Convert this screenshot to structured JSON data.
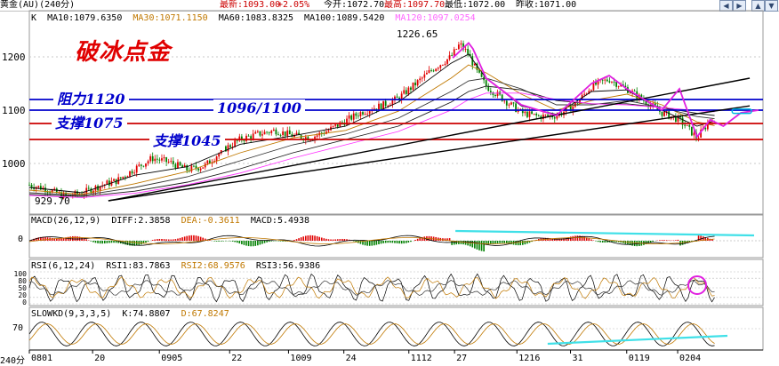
{
  "header": {
    "instrument": "黄金(AU)(240分)",
    "items": [
      "最新:1093.00",
      "+2.05%",
      "今开:1072.70",
      "最高:1097.70",
      "最低:1072.00",
      "昨收:1071.00"
    ]
  },
  "legend": {
    "k_label": "K",
    "ma": [
      {
        "label": "MA10:1079.6350",
        "color": "#000000"
      },
      {
        "label": "MA30:1071.1150",
        "color": "#c07800"
      },
      {
        "label": "MA60:1083.8325",
        "color": "#000000"
      },
      {
        "label": "MA100:1089.5420",
        "color": "#000000"
      },
      {
        "label": "MA120:1097.0254",
        "color": "#ff66ff"
      }
    ]
  },
  "annotations": {
    "title": "破冰点金",
    "resistance": "阻力1120",
    "support1": "支撑1075",
    "range_label": "1096/1100",
    "support2": "支撑1045",
    "high_label": "1226.65",
    "low_label": "929.70"
  },
  "macd_panel": {
    "title": "MACD(26,12,9)",
    "diff": "DIFF:2.3858",
    "dea": "DEA:-0.3611",
    "macd": "MACD:5.4938",
    "zero_label": "0"
  },
  "rsi_panel": {
    "title": "RSI(6,12,24)",
    "rsi1": "RSI1:83.7863",
    "rsi2": "RSI2:68.9576",
    "rsi3": "RSI3:56.9386",
    "ticks": [
      "100",
      "80",
      "50",
      "20",
      "0"
    ]
  },
  "kd_panel": {
    "title": "SLOWKD(9,3,3,5)",
    "k": "K:74.8807",
    "d": "D:67.8247",
    "tick": "70"
  },
  "xaxis": {
    "period_label": "240分",
    "ticks": [
      "0801",
      "20",
      "0905",
      "22",
      "1009",
      "24",
      "1112",
      "27",
      "1216",
      "31",
      "0119",
      "0204"
    ]
  },
  "chart_data": {
    "type": "line",
    "title": "",
    "ylim": [
      910,
      1260
    ],
    "yticks": [
      1000,
      1100,
      1200
    ],
    "xlabel": "",
    "ylabel": "",
    "grid": true,
    "series": [
      {
        "name": "K",
        "x": [
          0,
          20,
          40,
          60,
          80,
          100,
          120,
          140,
          160,
          180,
          200,
          220,
          240,
          260,
          280,
          300,
          320,
          340,
          360,
          380,
          400,
          420,
          440,
          460,
          480,
          490,
          500,
          510,
          520,
          540,
          560,
          580,
          600,
          620,
          640,
          660,
          680,
          700,
          720,
          740,
          760,
          780
        ],
        "values": [
          960,
          952,
          938,
          944,
          958,
          968,
          990,
          1010,
          1002,
          988,
          996,
          1025,
          1045,
          1055,
          1062,
          1052,
          1048,
          1062,
          1080,
          1098,
          1108,
          1122,
          1150,
          1178,
          1200,
          1224,
          1205,
          1170,
          1145,
          1120,
          1095,
          1088,
          1090,
          1108,
          1145,
          1158,
          1140,
          1118,
          1095,
          1082,
          1048,
          1092
        ]
      },
      {
        "name": "MA10",
        "x": [
          0,
          60,
          120,
          180,
          240,
          300,
          360,
          420,
          480,
          500,
          520,
          560,
          600,
          640,
          680,
          720,
          760,
          780
        ],
        "values": [
          955,
          945,
          978,
          994,
          1036,
          1052,
          1070,
          1115,
          1188,
          1205,
          1160,
          1108,
          1092,
          1135,
          1138,
          1100,
          1070,
          1080
        ]
      },
      {
        "name": "MA30",
        "x": [
          0,
          60,
          120,
          180,
          240,
          300,
          360,
          420,
          480,
          500,
          520,
          560,
          600,
          640,
          680,
          720,
          760,
          780
        ],
        "values": [
          950,
          942,
          962,
          985,
          1020,
          1048,
          1062,
          1098,
          1160,
          1185,
          1170,
          1130,
          1100,
          1118,
          1130,
          1110,
          1078,
          1071
        ]
      },
      {
        "name": "MA60",
        "x": [
          0,
          60,
          120,
          180,
          240,
          300,
          360,
          420,
          480,
          500,
          520,
          560,
          600,
          640,
          680,
          720,
          760,
          780
        ],
        "values": [
          945,
          940,
          955,
          975,
          1005,
          1035,
          1055,
          1085,
          1135,
          1155,
          1160,
          1140,
          1110,
          1110,
          1118,
          1105,
          1088,
          1084
        ]
      },
      {
        "name": "MA100",
        "x": [
          0,
          60,
          120,
          180,
          240,
          300,
          360,
          420,
          480,
          500,
          520,
          560,
          600,
          640,
          680,
          720,
          760,
          780
        ],
        "values": [
          942,
          938,
          948,
          965,
          990,
          1020,
          1045,
          1070,
          1115,
          1135,
          1145,
          1138,
          1118,
          1112,
          1112,
          1105,
          1094,
          1090
        ]
      },
      {
        "name": "MA120",
        "x": [
          0,
          60,
          120,
          180,
          240,
          300,
          360,
          420,
          480,
          500,
          520,
          560,
          600,
          640,
          680,
          720,
          760,
          780
        ],
        "values": [
          940,
          936,
          944,
          960,
          982,
          1010,
          1035,
          1060,
          1100,
          1120,
          1132,
          1132,
          1120,
          1112,
          1110,
          1105,
          1099,
          1097
        ]
      },
      {
        "name": "",
        "x": [
          482,
          500,
          505,
          520,
          560,
          600,
          640,
          660,
          680,
          700,
          720,
          740,
          760,
          775,
          790,
          810,
          830
        ],
        "values": [
          1198,
          1226,
          1215,
          1160,
          1110,
          1090,
          1150,
          1165,
          1140,
          1120,
          1100,
          1140,
          1050,
          1082,
          1070,
          1095,
          1100
        ]
      }
    ],
    "levels": [
      {
        "value": 1120,
        "color": "#0000cc"
      },
      {
        "value": 1100,
        "color": "#0000cc"
      },
      {
        "value": 1075,
        "color": "#cc0000"
      },
      {
        "value": 1045,
        "color": "#cc0000"
      }
    ],
    "trendlines": [
      {
        "x": [
          90,
          820
        ],
        "values": [
          930,
          1160
        ]
      },
      {
        "x": [
          90,
          820
        ],
        "values": [
          930,
          1108
        ]
      }
    ],
    "target_box": {
      "x": [
        800,
        822
      ],
      "values": [
        1094,
        1102
      ]
    },
    "high": {
      "x": 508,
      "value": 1226.65
    },
    "low": {
      "x": 92,
      "value": 929.7
    }
  }
}
